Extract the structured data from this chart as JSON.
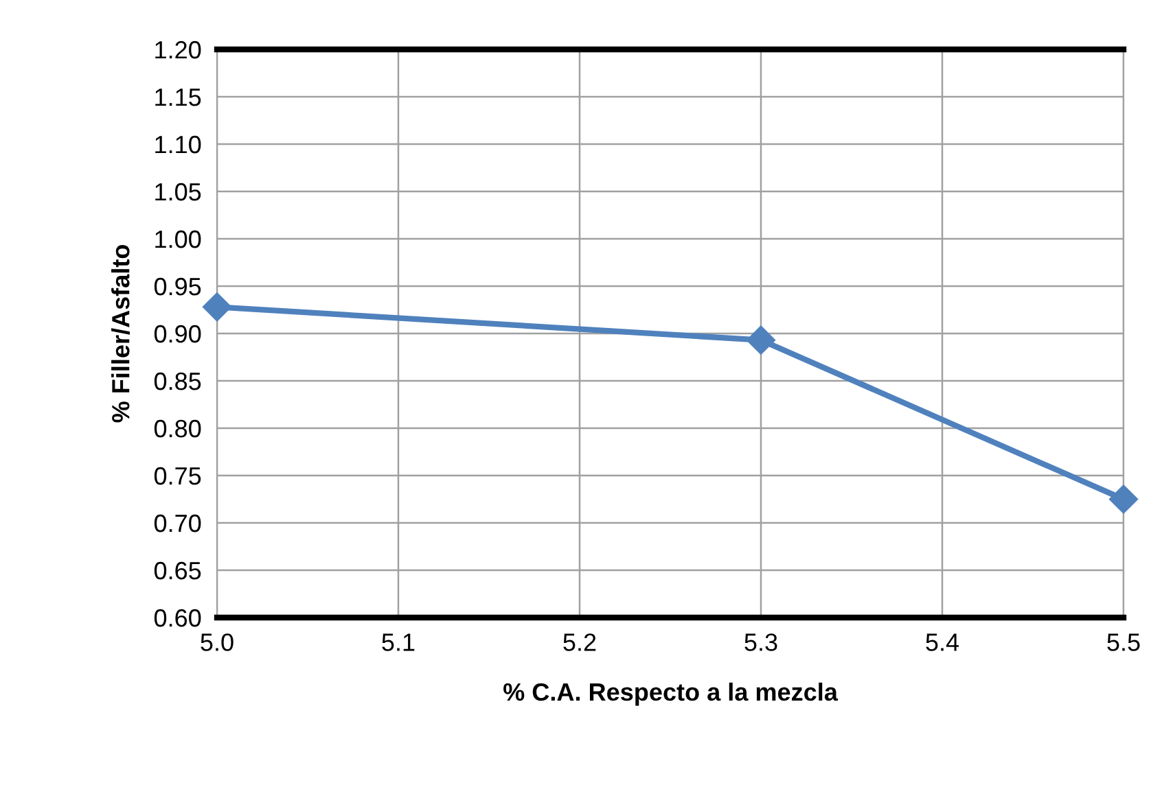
{
  "chart_data": {
    "type": "line",
    "xlabel": "% C.A. Respecto a la mezcla",
    "ylabel": "% Filler/Asfalto",
    "x": [
      5.0,
      5.3,
      5.5
    ],
    "series": [
      {
        "color": "#4f81bd",
        "values": [
          0.928,
          0.893,
          0.725
        ]
      }
    ],
    "xlim": [
      5.0,
      5.5
    ],
    "xticks": [
      {
        "value": 5.0,
        "label": "5.0"
      },
      5.1,
      5.2,
      5.3,
      5.4,
      5.5
    ],
    "ylim": [
      0.6,
      1.2
    ],
    "yticks": [
      {
        "value": 0.6,
        "label": "0.60"
      },
      {
        "value": 0.65,
        "label": "0.65"
      },
      {
        "value": 0.7,
        "label": "0.70"
      },
      {
        "value": 0.75,
        "label": "0.75"
      },
      {
        "value": 0.8,
        "label": "0.80"
      },
      {
        "value": 0.85,
        "label": "0.85"
      },
      {
        "value": 0.9,
        "label": "0.90"
      },
      {
        "value": 0.95,
        "label": "0.95"
      },
      {
        "value": 1.0,
        "label": "1.00"
      },
      {
        "value": 1.05,
        "label": "1.05"
      },
      {
        "value": 1.1,
        "label": "1.10"
      },
      {
        "value": 1.15,
        "label": "1.15"
      },
      {
        "value": 1.2,
        "label": "1.20"
      }
    ],
    "grid": true,
    "marker": "diamond",
    "line_style": "solid",
    "legend": false
  }
}
